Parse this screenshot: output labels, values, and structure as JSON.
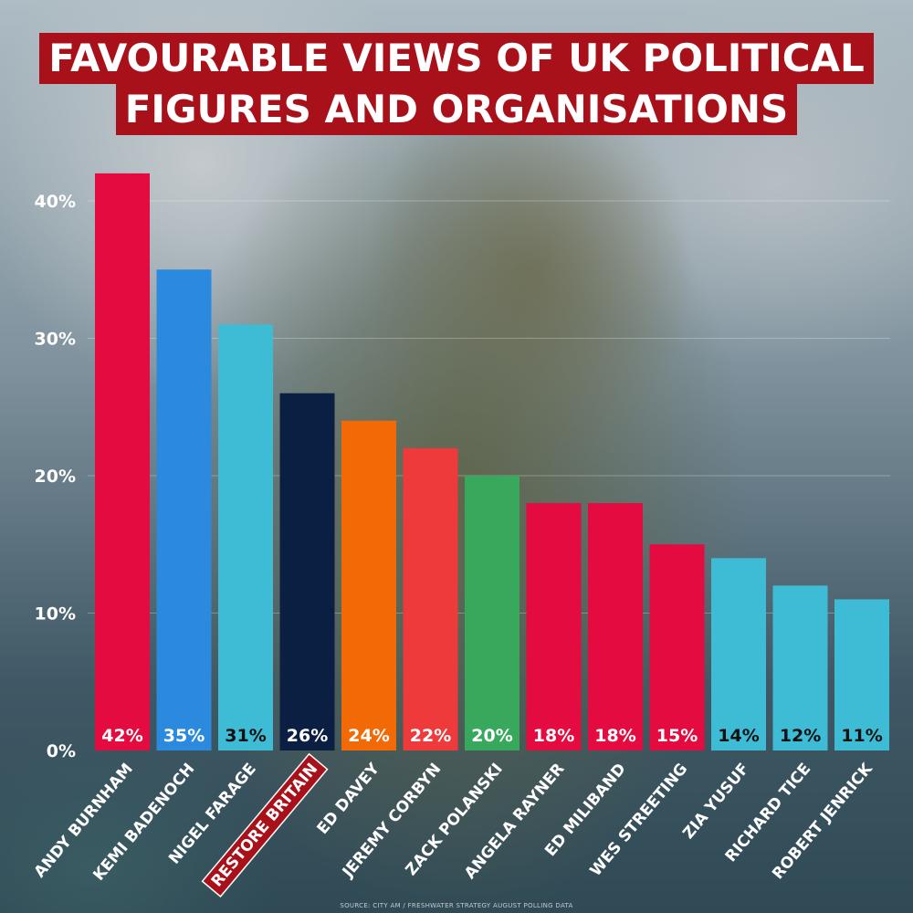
{
  "title": {
    "line1": "FAVOURABLE VIEWS OF UK POLITICAL",
    "line2": "FIGURES AND ORGANISATIONS"
  },
  "source": "SOURCE: CITY AM / FRESHWATER STRATEGY AUGUST POLLING DATA",
  "chart_data": {
    "type": "bar",
    "title": "FAVOURABLE VIEWS OF UK POLITICAL FIGURES AND ORGANISATIONS",
    "xlabel": "",
    "ylabel": "",
    "ylim": [
      0,
      42
    ],
    "yticks": [
      "0%",
      "10%",
      "20%",
      "30%",
      "40%"
    ],
    "grid": true,
    "categories": [
      "ANDY BURNHAM",
      "KEMI BADENOCH",
      "NIGEL FARAGE",
      "RESTORE BRITAIN",
      "ED DAVEY",
      "JEREMY CORBYN",
      "ZACK POLANSKI",
      "ANGELA RAYNER",
      "ED MILIBAND",
      "WES STREETING",
      "ZIA YUSUF",
      "RICHARD TICE",
      "ROBERT JENRICK"
    ],
    "values": [
      42,
      35,
      31,
      26,
      24,
      22,
      20,
      18,
      18,
      15,
      14,
      12,
      11
    ],
    "data_labels": [
      "42%",
      "35%",
      "31%",
      "26%",
      "24%",
      "22%",
      "20%",
      "18%",
      "18%",
      "15%",
      "14%",
      "12%",
      "11%"
    ],
    "colors": [
      "#e30b3f",
      "#2b8ade",
      "#3ebcd6",
      "#0a1f42",
      "#f26a05",
      "#ee3a3a",
      "#38a85c",
      "#e30b3f",
      "#e30b3f",
      "#e30b3f",
      "#3ebcd6",
      "#3ebcd6",
      "#3ebcd6"
    ],
    "label_colors": [
      "#ffffff",
      "#ffffff",
      "#111111",
      "#ffffff",
      "#ffffff",
      "#ffffff",
      "#ffffff",
      "#ffffff",
      "#ffffff",
      "#ffffff",
      "#111111",
      "#111111",
      "#111111"
    ],
    "highlighted_category": "RESTORE BRITAIN",
    "highlight_color": "#a8111a"
  }
}
